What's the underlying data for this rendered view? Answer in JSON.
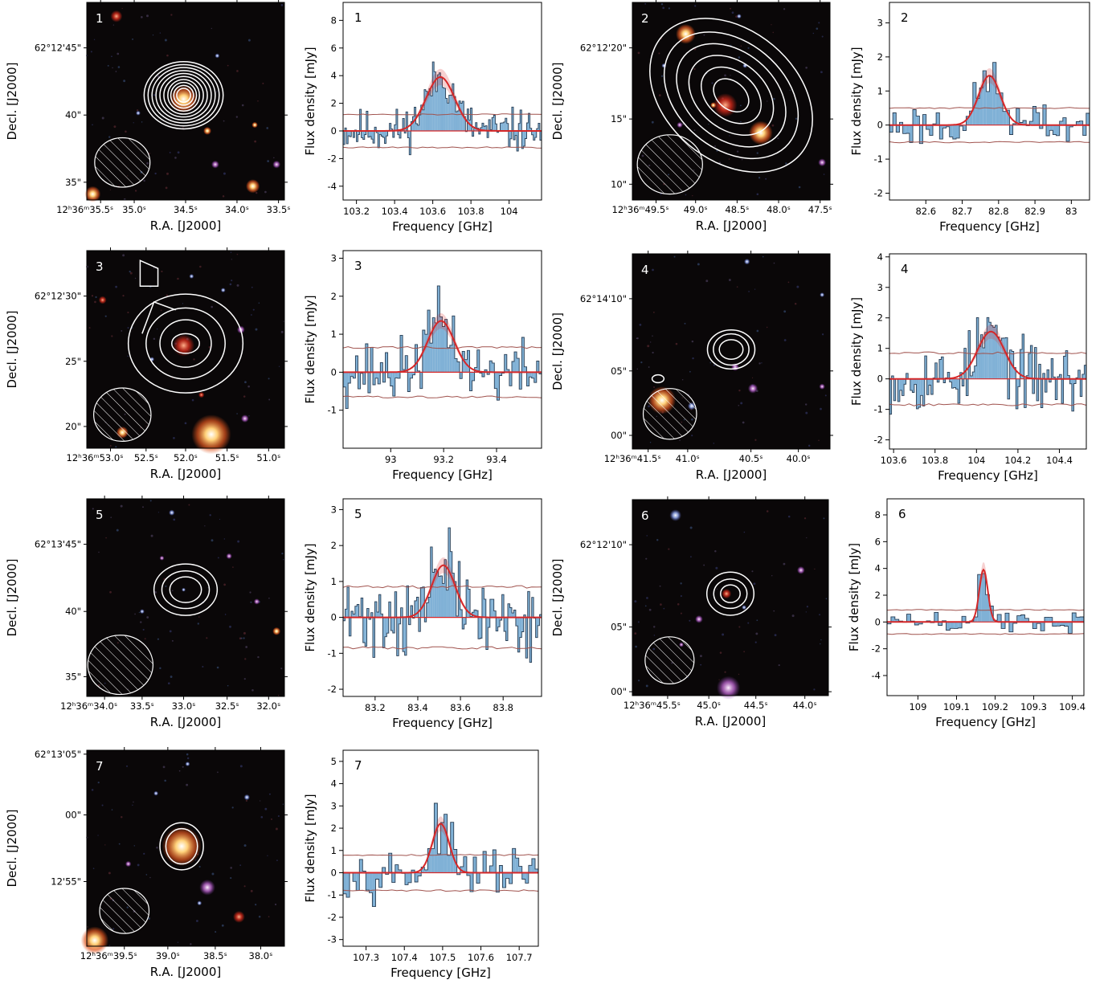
{
  "common": {
    "ra_label": "R.A. [J2000]",
    "dec_label": "Decl. [J2000]",
    "freq_label": "Frequency [GHz]",
    "flux_label": "Flux density [mJy]",
    "ra_tick_prefix": "12ʰ36ᵐ",
    "colors": {
      "spectrum": "#80b1d6",
      "fit": "#d62728",
      "noise": "#a0524d",
      "contour": "#ffffff"
    }
  },
  "chart_data": [
    {
      "id": "1",
      "type": "image",
      "ra_ticks": [
        {
          "label": "35.5ˢ",
          "pos": 0.07
        },
        {
          "label": "35.0ˢ",
          "pos": 0.24
        },
        {
          "label": "34.5ˢ",
          "pos": 0.5
        },
        {
          "label": "34.0ˢ",
          "pos": 0.76
        },
        {
          "label": "33.5ˢ",
          "pos": 0.97
        }
      ],
      "dec_first_label": "62°12'45\"",
      "dec_ticks": [
        {
          "label": "40\"",
          "pos": 0.57
        },
        {
          "label": "35\"",
          "pos": 0.91
        }
      ]
    },
    {
      "id": "1",
      "type": "bar",
      "xlim": [
        103.13,
        104.17
      ],
      "ylim": [
        -5,
        9.3
      ],
      "xticks": [
        103.2,
        103.4,
        103.6,
        103.8,
        104.0
      ],
      "yticks": [
        -4,
        -2,
        0,
        2,
        4,
        6,
        8
      ],
      "fit": {
        "amp": 3.9,
        "mu": 103.64,
        "sigma": 0.075
      },
      "noise": 1.2,
      "line_range": [
        103.52,
        103.76
      ],
      "seed": 11,
      "nchan": 120
    },
    {
      "id": "2",
      "type": "image",
      "ra_ticks": [
        {
          "label": "49.5ˢ",
          "pos": 0.12
        },
        {
          "label": "49.0ˢ",
          "pos": 0.32
        },
        {
          "label": "48.5ˢ",
          "pos": 0.53
        },
        {
          "label": "48.0ˢ",
          "pos": 0.74
        },
        {
          "label": "47.5ˢ",
          "pos": 0.95
        }
      ],
      "dec_first_label": "62°12'20\"",
      "dec_ticks": [
        {
          "label": "15\"",
          "pos": 0.59
        },
        {
          "label": "10\"",
          "pos": 0.92
        }
      ]
    },
    {
      "id": "2",
      "type": "bar",
      "xlim": [
        82.5,
        83.05
      ],
      "ylim": [
        -2.2,
        3.6
      ],
      "xticks": [
        82.6,
        82.7,
        82.8,
        82.9,
        83.0
      ],
      "yticks": [
        -2,
        -1,
        0,
        1,
        2,
        3
      ],
      "fit": {
        "amp": 1.45,
        "mu": 82.775,
        "sigma": 0.03
      },
      "noise": 0.5,
      "line_range": [
        82.72,
        82.83
      ],
      "seed": 23,
      "nchan": 60
    },
    {
      "id": "3",
      "type": "image",
      "ra_ticks": [
        {
          "label": "53.0ˢ",
          "pos": 0.12
        },
        {
          "label": "52.5ˢ",
          "pos": 0.3
        },
        {
          "label": "52.0ˢ",
          "pos": 0.5
        },
        {
          "label": "51.5ˢ",
          "pos": 0.71
        },
        {
          "label": "51.0ˢ",
          "pos": 0.92
        }
      ],
      "dec_first_label": "62°12'30\"",
      "dec_ticks": [
        {
          "label": "25\"",
          "pos": 0.56
        },
        {
          "label": "20\"",
          "pos": 0.89
        }
      ]
    },
    {
      "id": "3",
      "type": "bar",
      "xlim": [
        92.82,
        93.57
      ],
      "ylim": [
        -2,
        3.2
      ],
      "xticks": [
        93.0,
        93.2,
        93.4
      ],
      "yticks": [
        -1,
        0,
        1,
        2,
        3
      ],
      "fit": {
        "amp": 1.35,
        "mu": 93.19,
        "sigma": 0.05
      },
      "noise": 0.65,
      "line_range": [
        93.08,
        93.3
      ],
      "seed": 37,
      "nchan": 80
    },
    {
      "id": "4",
      "type": "image",
      "ra_ticks": [
        {
          "label": "41.5ˢ",
          "pos": 0.08
        },
        {
          "label": "41.0ˢ",
          "pos": 0.28
        },
        {
          "label": "40.5ˢ",
          "pos": 0.6
        },
        {
          "label": "40.0ˢ",
          "pos": 0.84
        }
      ],
      "dec_first_label": "62°14'10\"",
      "dec_ticks": [
        {
          "label": "05\"",
          "pos": 0.6
        },
        {
          "label": "00\"",
          "pos": 0.93
        }
      ]
    },
    {
      "id": "4",
      "type": "bar",
      "xlim": [
        103.58,
        104.53
      ],
      "ylim": [
        -2.3,
        4.1
      ],
      "xticks": [
        103.6,
        103.8,
        104.0,
        104.2,
        104.4
      ],
      "yticks": [
        -2,
        -1,
        0,
        1,
        2,
        3,
        4
      ],
      "fit": {
        "amp": 1.55,
        "mu": 104.07,
        "sigma": 0.065
      },
      "noise": 0.85,
      "line_range": [
        103.94,
        104.2
      ],
      "seed": 53,
      "nchan": 95
    },
    {
      "id": "5",
      "type": "image",
      "ra_ticks": [
        {
          "label": "34.0ˢ",
          "pos": 0.09
        },
        {
          "label": "33.5ˢ",
          "pos": 0.28
        },
        {
          "label": "33.0ˢ",
          "pos": 0.49
        },
        {
          "label": "32.5ˢ",
          "pos": 0.71
        },
        {
          "label": "32.0ˢ",
          "pos": 0.92
        }
      ],
      "dec_first_label": "62°13'45\"",
      "dec_ticks": [
        {
          "label": "40\"",
          "pos": 0.57
        },
        {
          "label": "35\"",
          "pos": 0.9
        }
      ]
    },
    {
      "id": "5",
      "type": "bar",
      "xlim": [
        83.05,
        83.98
      ],
      "ylim": [
        -2.2,
        3.3
      ],
      "xticks": [
        83.2,
        83.4,
        83.6,
        83.8
      ],
      "yticks": [
        -2,
        -1,
        0,
        1,
        2,
        3
      ],
      "fit": {
        "amp": 1.45,
        "mu": 83.52,
        "sigma": 0.055
      },
      "noise": 0.85,
      "line_range": [
        83.4,
        83.64
      ],
      "seed": 71,
      "nchan": 100
    },
    {
      "id": "6",
      "type": "image",
      "ra_ticks": [
        {
          "label": "45.5ˢ",
          "pos": 0.18
        },
        {
          "label": "45.0ˢ",
          "pos": 0.39
        },
        {
          "label": "44.5ˢ",
          "pos": 0.63
        },
        {
          "label": "44.0ˢ",
          "pos": 0.88
        }
      ],
      "dec_first_label": "62°12'10\"",
      "dec_ticks": [
        {
          "label": "05\"",
          "pos": 0.65
        },
        {
          "label": "00\"",
          "pos": 0.98
        }
      ]
    },
    {
      "id": "6",
      "type": "bar",
      "xlim": [
        108.92,
        109.43
      ],
      "ylim": [
        -5.5,
        9.2
      ],
      "xticks": [
        109.0,
        109.1,
        109.2,
        109.3,
        109.4
      ],
      "yticks": [
        -4,
        -2,
        0,
        2,
        4,
        6,
        8
      ],
      "fit": {
        "amp": 3.9,
        "mu": 109.17,
        "sigma": 0.011
      },
      "noise": 0.9,
      "line_range": [
        109.155,
        109.19
      ],
      "seed": 89,
      "nchan": 50
    },
    {
      "id": "7",
      "type": "image",
      "ra_ticks": [
        {
          "label": "39.5ˢ",
          "pos": 0.19
        },
        {
          "label": "39.0ˢ",
          "pos": 0.41
        },
        {
          "label": "38.5ˢ",
          "pos": 0.65
        },
        {
          "label": "38.0ˢ",
          "pos": 0.88
        }
      ],
      "dec_first_label": "62°13'05\"",
      "dec_ticks": [
        {
          "label": "00\"",
          "pos": 0.33
        },
        {
          "label": "12'55\"",
          "pos": 0.67
        }
      ]
    },
    {
      "id": "7",
      "type": "bar",
      "xlim": [
        107.24,
        107.75
      ],
      "ylim": [
        -3.3,
        5.5
      ],
      "xticks": [
        107.3,
        107.4,
        107.5,
        107.6,
        107.7
      ],
      "yticks": [
        -3,
        -2,
        -1,
        0,
        1,
        2,
        3,
        4,
        5
      ],
      "fit": {
        "amp": 2.2,
        "mu": 107.495,
        "sigma": 0.022
      },
      "noise": 0.8,
      "line_range": [
        107.45,
        107.54
      ],
      "seed": 97,
      "nchan": 60
    }
  ]
}
